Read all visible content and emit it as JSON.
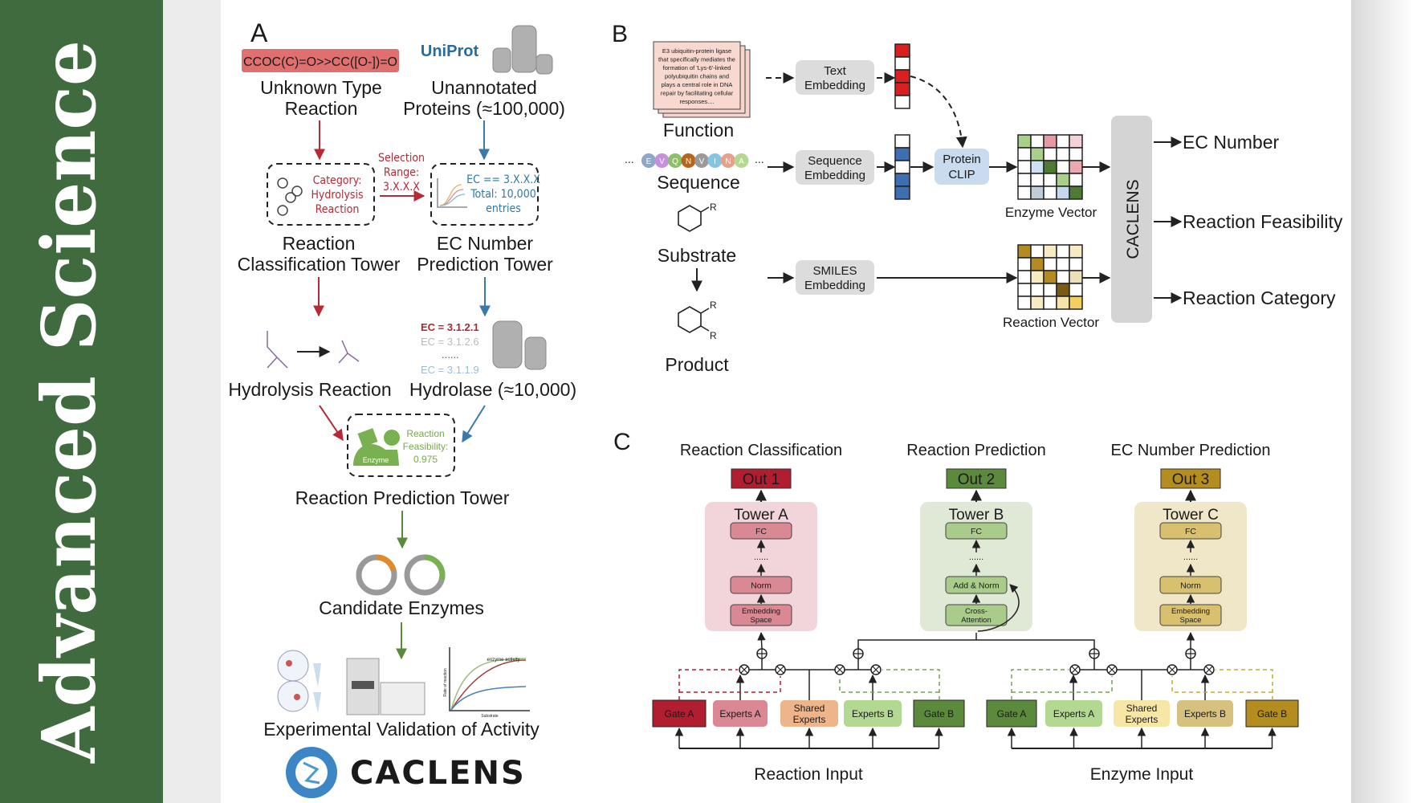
{
  "banner": {
    "title": "Advanced Science",
    "bg_color": "#3f6b3f"
  },
  "panel_a": {
    "label": "A",
    "smiles": "CCOC(C)=O>>CC([O-])=O",
    "uniprot_logo": "UniProt",
    "unknown_reaction": [
      "Unknown Type",
      "Reaction"
    ],
    "unannotated": [
      "Unannotated",
      "Proteins (≈100,000)"
    ],
    "category_box": [
      "Category:",
      "Hydrolysis",
      "Reaction"
    ],
    "selection_range": [
      "Selection",
      "Range:",
      "3.X.X.X"
    ],
    "ec_box": [
      "EC == 3.X.X.X",
      "Total: 10,000",
      "entries"
    ],
    "rc_tower": [
      "Reaction",
      "Classification Tower"
    ],
    "ec_tower": [
      "EC Number",
      "Prediction Tower"
    ],
    "hydrolysis": "Hydrolysis Reaction",
    "ec_list": [
      "EC = 3.1.2.1",
      "EC = 3.1.2.6",
      "......",
      "EC = 3.1.1.9"
    ],
    "hydrolase": "Hydrolase (≈10,000)",
    "enzyme_label": "Enzyme",
    "feasibility": [
      "Reaction",
      "Feasibility:",
      "0.975"
    ],
    "rp_tower": "Reaction Prediction Tower",
    "candidates": "Candidate Enzymes",
    "plot_title": "enzyme activity",
    "plot_ylabel": "Rate of reaction",
    "plot_xlabel": "Substrate",
    "validation": "Experimental Validation of Activity",
    "logo_text": "CACLENS"
  },
  "panel_b": {
    "label": "B",
    "function_text": [
      "E3 ubiquitin-protein ligase",
      "that specifically mediates the",
      "formation of 'Lys-6'-linked",
      "polyubiquitin chains and",
      "plays a central role in DNA",
      "repair by facilitating cellular",
      "responses...."
    ],
    "function": "Function",
    "sequence_letters": [
      "E",
      "V",
      "Q",
      "N",
      "V",
      "I",
      "N",
      "A"
    ],
    "sequence_colors": [
      "#8fa6c4",
      "#c58fe0",
      "#8cbf6a",
      "#b5651d",
      "#9a9a9a",
      "#86c4e4",
      "#e8a08a",
      "#b5d890"
    ],
    "ellipsis": "...",
    "sequence": "Sequence",
    "substrate": "Substrate",
    "product": "Product",
    "r_group": "R",
    "text_embedding": [
      "Text",
      "Embedding"
    ],
    "sequence_embedding": [
      "Sequence",
      "Embedding"
    ],
    "smiles_embedding": [
      "SMILES",
      "Embedding"
    ],
    "protein_clip": [
      "Protein",
      "CLIP"
    ],
    "enzyme_vector": "Enzyme Vector",
    "reaction_vector": "Reaction Vector",
    "caclens": "CACLENS",
    "outputs": [
      "EC Number",
      "Reaction Feasibility",
      "Reaction Category"
    ]
  },
  "panel_c": {
    "label": "C",
    "tasks": [
      {
        "title": "Reaction Classification",
        "out": "Out 1",
        "tower": "Tower A",
        "layers": [
          "FC",
          "Norm",
          "Embedding Space"
        ],
        "out_color": "#b01e30",
        "bg": "#f2d5da",
        "box": "#d98894"
      },
      {
        "title": "Reaction Prediction",
        "out": "Out 2",
        "tower": "Tower B",
        "layers": [
          "FC",
          "Add & Norm",
          "Cross-Attention"
        ],
        "out_color": "#5c8a3c",
        "bg": "#dfe9d5",
        "box": "#a9cc8b"
      },
      {
        "title": "EC Number Prediction",
        "out": "Out 3",
        "tower": "Tower C",
        "layers": [
          "FC",
          "Norm",
          "Embedding Space"
        ],
        "out_color": "#b48d1e",
        "bg": "#f0e7c8",
        "box": "#d9c06e"
      }
    ],
    "dots": "......",
    "reaction_modules": [
      "Gate A",
      "Experts A",
      "Shared Experts",
      "Experts B",
      "Gate B"
    ],
    "enzyme_modules": [
      "Gate A",
      "Experts A",
      "Shared Experts",
      "Experts B",
      "Gate B"
    ],
    "reaction_input": "Reaction Input",
    "enzyme_input": "Enzyme Input"
  }
}
